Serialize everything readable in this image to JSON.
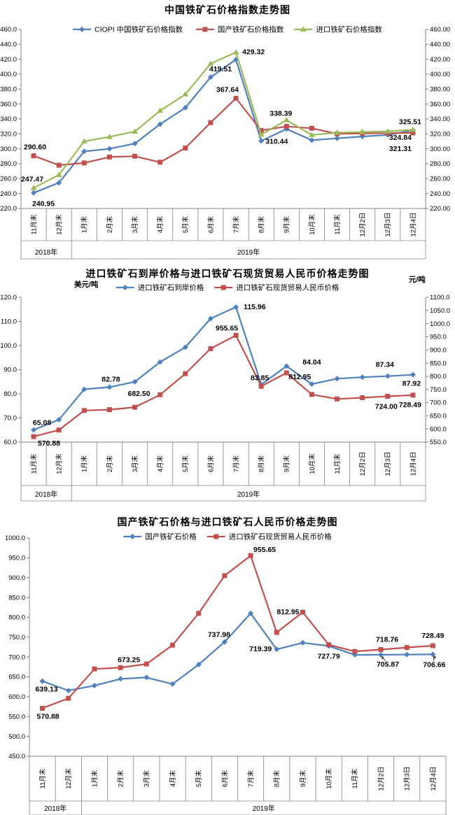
{
  "colors": {
    "blue": "#4F81BD",
    "red": "#C0504D",
    "green": "#9BBB59",
    "axis": "#808080",
    "text": "#000000"
  },
  "categories": [
    "11月末",
    "12月末",
    "1月末",
    "2月末",
    "3月末",
    "4月末",
    "5月末",
    "6月末",
    "7月末",
    "8月末",
    "9月末",
    "10月末",
    "11月末",
    "12月2日",
    "12月3日",
    "12月4日"
  ],
  "year_groups": [
    {
      "label": "2018年",
      "count": 2
    },
    {
      "label": "2019年",
      "count": 14
    }
  ],
  "chart_data": [
    {
      "type": "line",
      "title": "中国铁矿石价格指数走势图",
      "left_axis": {
        "min": 220,
        "max": 460,
        "step": 20,
        "decimals": 1
      },
      "right_axis": {
        "min": 220,
        "max": 460,
        "step": 20,
        "decimals": 2
      },
      "legend_position": "top",
      "grid": false,
      "series": [
        {
          "name": "CIOPI 中国铁矿石价格指数",
          "color": "#4F81BD",
          "marker": "diamond",
          "axis": "left",
          "values": [
            240.95,
            254.5,
            296.5,
            300.0,
            307.0,
            333.0,
            355.0,
            396.0,
            419.51,
            310.44,
            326.5,
            311.5,
            314.0,
            316.5,
            318.5,
            324.84
          ],
          "point_labels": [
            {
              "i": 0,
              "t": "240.95",
              "dx": 14,
              "dy": 19,
              "a": "m"
            },
            {
              "i": 8,
              "t": "419.51",
              "dx": -6,
              "dy": 17,
              "a": "e"
            },
            {
              "i": 9,
              "t": "310.44",
              "dx": 6,
              "dy": 4,
              "a": "s"
            },
            {
              "i": 15,
              "t": "324.84",
              "dx": -2,
              "dy": 14,
              "a": "e"
            }
          ]
        },
        {
          "name": "国产铁矿石价格指数",
          "color": "#C0504D",
          "marker": "square",
          "axis": "left",
          "values": [
            290.6,
            278.0,
            281.0,
            289.0,
            290.0,
            282.0,
            301.0,
            335.0,
            367.64,
            324.5,
            330.0,
            327.5,
            320.0,
            320.5,
            321.0,
            321.31
          ],
          "point_labels": [
            {
              "i": 0,
              "t": "290.60",
              "dx": 2,
              "dy": -9,
              "a": "m"
            },
            {
              "i": 8,
              "t": "367.64",
              "dx": -12,
              "dy": -9,
              "a": "m"
            },
            {
              "i": 15,
              "t": "321.31",
              "dx": -2,
              "dy": 26,
              "a": "e"
            }
          ]
        },
        {
          "name": "进口铁矿石价格指数",
          "color": "#9BBB59",
          "marker": "triangle",
          "axis": "left",
          "values": [
            247.47,
            265.0,
            310.0,
            316.0,
            323.0,
            351.0,
            373.0,
            414.0,
            429.32,
            319.0,
            338.39,
            318.5,
            321.5,
            322.5,
            323.5,
            325.51
          ],
          "point_labels": [
            {
              "i": 0,
              "t": "247.47",
              "dx": -2,
              "dy": -9,
              "a": "m"
            },
            {
              "i": 8,
              "t": "429.32",
              "dx": 9,
              "dy": 3,
              "a": "s"
            },
            {
              "i": 10,
              "t": "338.39",
              "dx": -8,
              "dy": -6,
              "a": "m"
            },
            {
              "i": 15,
              "t": "325.51",
              "dx": -4,
              "dy": -8,
              "a": "m"
            }
          ]
        }
      ]
    },
    {
      "type": "line",
      "title": "进口铁矿石到岸价格与进口铁矿石现货贸易人民币价格走势图",
      "axis_units": {
        "left": "美元/吨",
        "right": "元/吨"
      },
      "left_axis": {
        "min": 60,
        "max": 120,
        "step": 10,
        "decimals": 1
      },
      "right_axis": {
        "min": 550,
        "max": 1100,
        "step": 50,
        "decimals": 1
      },
      "legend_position": "top",
      "grid": false,
      "series": [
        {
          "name": "进口铁矿石到岸价格",
          "color": "#4F81BD",
          "marker": "diamond",
          "axis": "left",
          "values": [
            65.08,
            69.3,
            81.9,
            82.78,
            85.0,
            93.2,
            99.3,
            111.2,
            115.96,
            83.85,
            91.5,
            84.04,
            86.3,
            86.9,
            87.34,
            87.92
          ],
          "point_labels": [
            {
              "i": 0,
              "t": "65.08",
              "dx": 12,
              "dy": -7,
              "a": "m"
            },
            {
              "i": 3,
              "t": "82.78",
              "dx": 2,
              "dy": -8,
              "a": "m"
            },
            {
              "i": 8,
              "t": "115.96",
              "dx": 11,
              "dy": 3,
              "a": "s"
            },
            {
              "i": 9,
              "t": "83.85",
              "dx": -2,
              "dy": -6,
              "a": "m"
            },
            {
              "i": 11,
              "t": "84.04",
              "dx": 0,
              "dy": -28,
              "a": "m"
            },
            {
              "i": 14,
              "t": "87.34",
              "dx": -4,
              "dy": -13,
              "a": "m"
            },
            {
              "i": 15,
              "t": "87.92",
              "dx": -2,
              "dy": 16,
              "a": "m"
            }
          ]
        },
        {
          "name": "进口铁矿石现货贸易人民币价格",
          "color": "#C0504D",
          "marker": "square",
          "axis": "right",
          "values": [
            570.88,
            596.0,
            670.0,
            673.25,
            682.5,
            730.0,
            810.0,
            905.0,
            955.65,
            762.0,
            812.95,
            731.0,
            714.0,
            718.76,
            724.0,
            728.49
          ],
          "point_labels": [
            {
              "i": 0,
              "t": "570.88",
              "dx": 22,
              "dy": 13,
              "a": "m"
            },
            {
              "i": 4,
              "t": "682.50",
              "dx": 6,
              "dy": -16,
              "a": "m"
            },
            {
              "i": 8,
              "t": "955.65",
              "dx": -13,
              "dy": -7,
              "a": "m"
            },
            {
              "i": 10,
              "t": "812.95",
              "dx": 19,
              "dy": 9,
              "a": "m"
            },
            {
              "i": 14,
              "t": "724.00",
              "dx": -2,
              "dy": 18,
              "a": "m"
            },
            {
              "i": 15,
              "t": "728.49",
              "dx": -4,
              "dy": 17,
              "a": "m"
            }
          ]
        }
      ]
    },
    {
      "type": "line",
      "title": "国产铁矿石价格与进口铁矿石人民币价格走势图",
      "left_axis": {
        "min": 450,
        "max": 1000,
        "step": 50,
        "decimals": 1
      },
      "legend_position": "top",
      "grid": false,
      "series": [
        {
          "name": "国产铁矿石价格",
          "color": "#4F81BD",
          "marker": "diamond",
          "axis": "left",
          "values": [
            639.13,
            615.5,
            628.0,
            645.0,
            648.5,
            632.0,
            681.0,
            737.98,
            810.0,
            719.39,
            736.0,
            727.79,
            705.5,
            705.87,
            706.2,
            706.66
          ],
          "point_labels": [
            {
              "i": 0,
              "t": "639.13",
              "dx": 6,
              "dy": 15,
              "a": "m"
            },
            {
              "i": 7,
              "t": "737.98",
              "dx": -8,
              "dy": -7,
              "a": "m"
            },
            {
              "i": 9,
              "t": "719.39",
              "dx": -7,
              "dy": 3,
              "a": "e"
            },
            {
              "i": 11,
              "t": "727.79",
              "dx": 0,
              "dy": 18,
              "a": "m"
            },
            {
              "i": 13,
              "t": "705.87",
              "dx": 10,
              "dy": 17,
              "a": "m",
              "leader": true
            },
            {
              "i": 15,
              "t": "706.66",
              "dx": 2,
              "dy": 18,
              "a": "m",
              "leader": true
            }
          ]
        },
        {
          "name": "进口铁矿石现货贸易人民币价格",
          "color": "#C0504D",
          "marker": "square",
          "axis": "left",
          "values": [
            570.88,
            596.0,
            670.0,
            673.25,
            682.5,
            730.0,
            810.0,
            905.0,
            955.65,
            762.0,
            812.95,
            731.0,
            714.0,
            718.76,
            724.0,
            728.49
          ],
          "point_labels": [
            {
              "i": 0,
              "t": "570.88",
              "dx": 8,
              "dy": 15,
              "a": "m"
            },
            {
              "i": 3,
              "t": "673.25",
              "dx": 12,
              "dy": -8,
              "a": "m"
            },
            {
              "i": 8,
              "t": "955.65",
              "dx": 20,
              "dy": -5,
              "a": "m"
            },
            {
              "i": 10,
              "t": "812.95",
              "dx": -21,
              "dy": 3,
              "a": "m"
            },
            {
              "i": 13,
              "t": "718.76",
              "dx": 9,
              "dy": -11,
              "a": "m"
            },
            {
              "i": 15,
              "t": "728.49",
              "dx": 0,
              "dy": -11,
              "a": "m"
            }
          ]
        }
      ]
    }
  ]
}
